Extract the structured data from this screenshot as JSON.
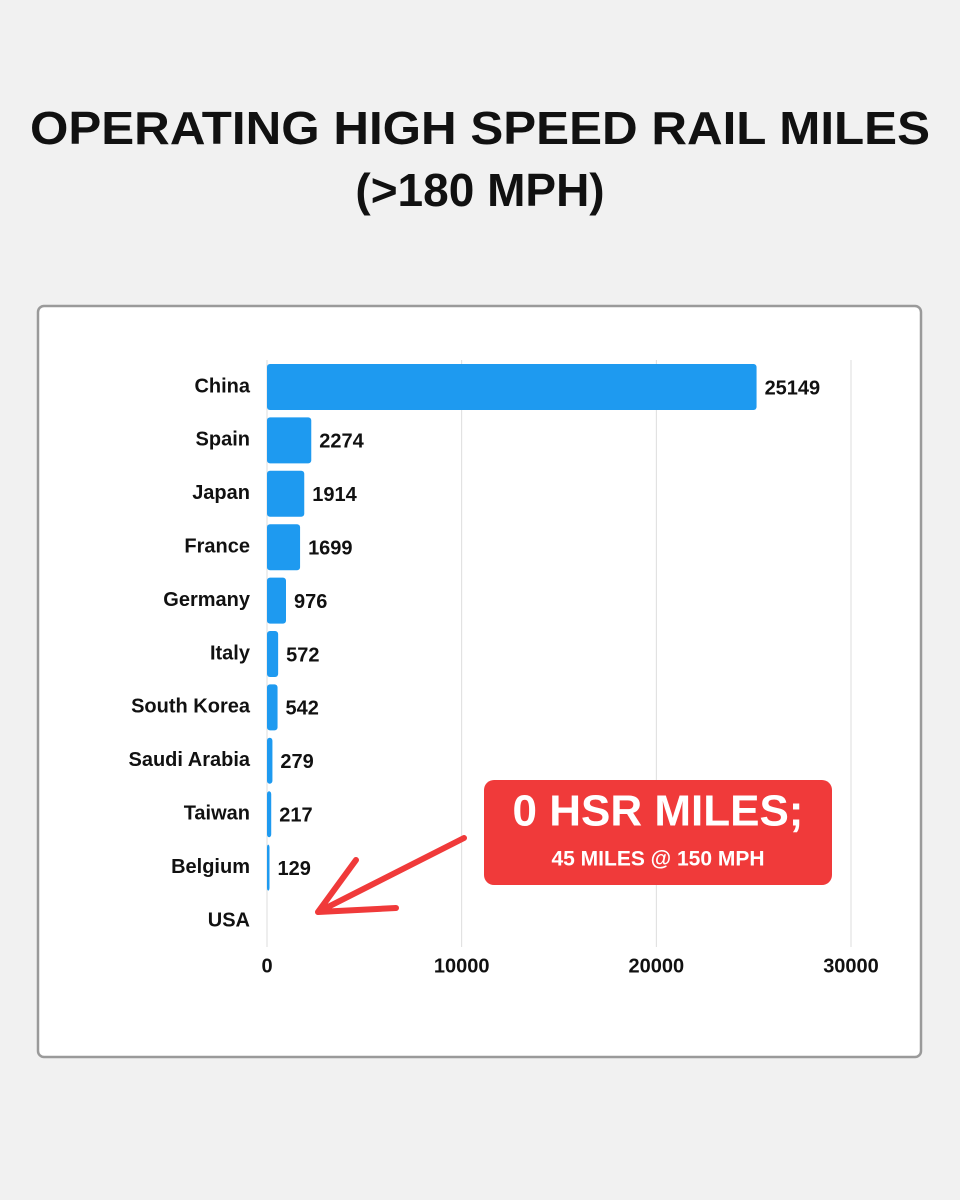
{
  "chart_data": {
    "type": "hbar",
    "title": "OPERATING HIGH SPEED RAIL MILES",
    "subtitle": "(>180 MPH)",
    "categories": [
      "China",
      "Spain",
      "Japan",
      "France",
      "Germany",
      "Italy",
      "South Korea",
      "Saudi Arabia",
      "Taiwan",
      "Belgium",
      "USA"
    ],
    "values": [
      25149,
      2274,
      1914,
      1699,
      976,
      572,
      542,
      279,
      217,
      129,
      0
    ],
    "value_labels": [
      "25149",
      "2274",
      "1914",
      "1699",
      "976",
      "572",
      "542",
      "279",
      "217",
      "129",
      null
    ],
    "color": "#1e9af0",
    "xlim": [
      0,
      30000
    ],
    "xticks": [
      0,
      10000,
      20000,
      30000
    ],
    "grid": true,
    "annotations": [
      "0 HSR MILES;",
      "45 MILES @ 150 MPH"
    ]
  }
}
